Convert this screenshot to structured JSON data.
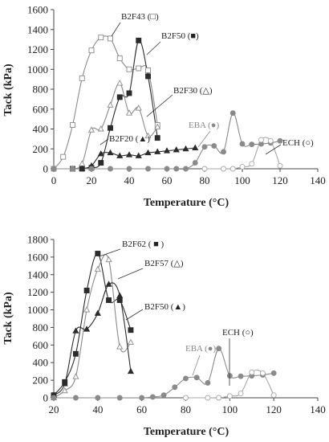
{
  "colors": {
    "dark": "#2b2b2b",
    "grey": "#8a8a8a",
    "light_grey": "#a8a8a8",
    "white": "#ffffff"
  },
  "chart_data": [
    {
      "type": "line",
      "xlabel": "Temperature (°C)",
      "ylabel": "Tack (kPa)",
      "xlim": [
        0,
        140
      ],
      "ylim": [
        0,
        1600
      ],
      "xticks": [
        0,
        20,
        40,
        60,
        80,
        100,
        120,
        140
      ],
      "yticks": [
        0,
        200,
        400,
        600,
        800,
        1000,
        1200,
        1400,
        1600
      ],
      "series": [
        {
          "name": "B2F43 (□)",
          "marker": "open-square",
          "color": "grey",
          "x": [
            0,
            5,
            10,
            15,
            20,
            25,
            30,
            35,
            40,
            45,
            50,
            55
          ],
          "y": [
            0,
            120,
            440,
            910,
            1190,
            1320,
            1310,
            1110,
            1000,
            1010,
            990,
            440
          ]
        },
        {
          "name": "B2F50 (■)",
          "marker": "filled-square",
          "color": "dark",
          "x": [
            10,
            15,
            20,
            25,
            30,
            35,
            40,
            45,
            50,
            55
          ],
          "y": [
            0,
            0,
            10,
            60,
            410,
            720,
            760,
            1290,
            930,
            310
          ]
        },
        {
          "name": "B2F30 (△)",
          "marker": "open-triangle",
          "color": "grey",
          "x": [
            10,
            15,
            20,
            25,
            30,
            35,
            40,
            45,
            50,
            55
          ],
          "y": [
            0,
            50,
            390,
            400,
            640,
            860,
            560,
            610,
            330,
            420
          ]
        },
        {
          "name": "B2F20 (▲)",
          "marker": "filled-triangle",
          "color": "dark",
          "x": [
            15,
            20,
            25,
            30,
            35,
            40,
            45,
            50,
            55,
            60,
            65,
            70,
            75
          ],
          "y": [
            0,
            30,
            150,
            160,
            130,
            140,
            130,
            160,
            170,
            180,
            190,
            200,
            210
          ]
        },
        {
          "name": "EBA (●)",
          "marker": "filled-circle",
          "color": "grey",
          "x": [
            0,
            10,
            20,
            30,
            40,
            50,
            60,
            65,
            70,
            75,
            80,
            85,
            90,
            95,
            100,
            105,
            110,
            115,
            120
          ],
          "y": [
            0,
            0,
            0,
            0,
            0,
            0,
            0,
            0,
            0,
            60,
            220,
            230,
            170,
            560,
            250,
            245,
            250,
            260,
            280
          ]
        },
        {
          "name": "ECH (○)",
          "marker": "open-circle",
          "color": "light_grey",
          "x": [
            80,
            90,
            95,
            100,
            105,
            110,
            115,
            120
          ],
          "y": [
            0,
            0,
            0,
            20,
            50,
            290,
            280,
            30
          ]
        }
      ],
      "annotations": {
        "b2f43": "B2F43 (□)",
        "b2f50": "B2F50 (■)",
        "b2f30": "B2F30 (△)",
        "b2f20": "B2F20 (▲)",
        "eba": "EBA (●)",
        "ech": "ECH (○)"
      }
    },
    {
      "type": "line",
      "xlabel": "Temperature (°C)",
      "ylabel": "Tack (kPa)",
      "xlim": [
        20,
        140
      ],
      "ylim": [
        0,
        1800
      ],
      "xticks": [
        20,
        40,
        60,
        80,
        100,
        120,
        140
      ],
      "yticks": [
        0,
        200,
        400,
        600,
        800,
        1000,
        1200,
        1400,
        1600,
        1800
      ],
      "series": [
        {
          "name": "B2F62 (■)",
          "marker": "filled-square",
          "color": "dark",
          "x": [
            20,
            25,
            30,
            35,
            40,
            45,
            50,
            55
          ],
          "y": [
            30,
            180,
            500,
            1220,
            1640,
            1110,
            1110,
            770
          ]
        },
        {
          "name": "B2F57 (△)",
          "marker": "open-triangle",
          "color": "grey",
          "x": [
            20,
            25,
            30,
            35,
            40,
            45,
            50,
            55
          ],
          "y": [
            0,
            80,
            240,
            1000,
            1460,
            1570,
            580,
            630
          ]
        },
        {
          "name": "B2F50 (▲)",
          "marker": "filled-triangle",
          "color": "dark",
          "x": [
            20,
            25,
            30,
            35,
            40,
            45,
            50,
            55
          ],
          "y": [
            30,
            160,
            760,
            780,
            960,
            1290,
            1160,
            300
          ]
        },
        {
          "name": "EBA (●)",
          "marker": "filled-circle",
          "color": "grey",
          "x": [
            20,
            30,
            40,
            50,
            60,
            65,
            70,
            75,
            80,
            85,
            90,
            95,
            100,
            105,
            110,
            115,
            120
          ],
          "y": [
            0,
            0,
            0,
            0,
            0,
            10,
            30,
            120,
            220,
            230,
            170,
            560,
            250,
            245,
            250,
            260,
            280
          ]
        },
        {
          "name": "ECH (○)",
          "marker": "open-circle",
          "color": "light_grey",
          "x": [
            80,
            90,
            95,
            100,
            105,
            110,
            115,
            120
          ],
          "y": [
            0,
            0,
            0,
            20,
            50,
            290,
            280,
            30
          ]
        }
      ],
      "annotations": {
        "b2f62": "B2F62 ( ■ )",
        "b2f57": "B2F57 (△)",
        "b2f50": "B2F50 (▲)",
        "eba": "EBA (●)",
        "ech": "ECH (○)"
      }
    }
  ]
}
